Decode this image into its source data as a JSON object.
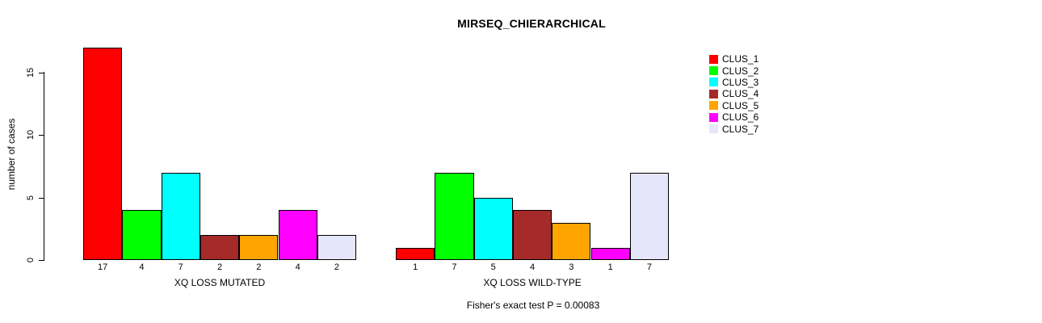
{
  "chart_data": {
    "type": "bar",
    "title": "MIRSEQ_CHIERARCHICAL",
    "ylabel": "number of cases",
    "yticks": [
      0,
      5,
      10,
      15
    ],
    "ylim": [
      0,
      17.5
    ],
    "grid": false,
    "legend_position": "right",
    "legend": [
      "CLUS_1",
      "CLUS_2",
      "CLUS_3",
      "CLUS_4",
      "CLUS_5",
      "CLUS_6",
      "CLUS_7"
    ],
    "colors": [
      "#FF0000",
      "#00FF00",
      "#00FFFF",
      "#A52A2A",
      "#FFA500",
      "#FF00FF",
      "#E6E6FA"
    ],
    "groups": [
      {
        "label": "XQ LOSS MUTATED",
        "values": [
          17,
          4,
          7,
          2,
          2,
          4,
          2
        ]
      },
      {
        "label": "XQ LOSS WILD-TYPE",
        "values": [
          1,
          7,
          5,
          4,
          3,
          1,
          7
        ]
      }
    ],
    "bar_value_labels_shown": true,
    "footnote": "Fisher's exact test P = 0.00083"
  }
}
